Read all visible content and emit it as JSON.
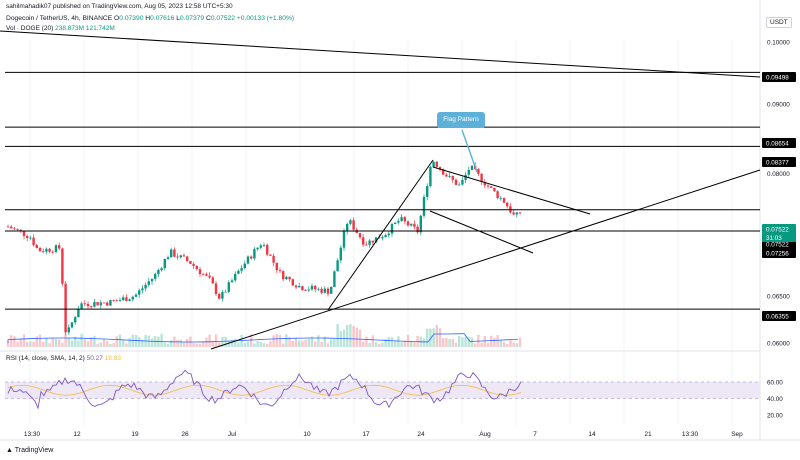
{
  "header": {
    "published_by": "sahilmahadik07 published on TradingView.com, Aug 05, 2023 12:58 UTC+5:30",
    "symbol": "Dogecoin / TetherUS, 4h, BINANCE",
    "open_label": "O",
    "open": "0.07390",
    "high_label": "H",
    "high": "0.07616",
    "low_label": "L",
    "low": "0.07379",
    "close_label": "C",
    "close": "0.07522",
    "change": "+0.00133 (+1.80%)",
    "volume_label": "Vol · DOGE (20)",
    "volume_1": "238.873M",
    "volume_2": "121.742M",
    "rsi_label": "RSI (14, close, SMA, 14, 2)",
    "rsi_1": "50.27",
    "rsi_2": "18.83"
  },
  "currency": "USDT",
  "brand": "TradingView",
  "annotation": "Flag Pattern",
  "countdown": "31:03",
  "colors": {
    "up": "#089981",
    "down": "#f23645",
    "line": "#000000",
    "rsi": "#7e57c2",
    "rsi_ma": "#f5b942",
    "rsi_band": "#ede7f6",
    "flag_box": "#5db1d9",
    "vol_ma": "#2962ff"
  },
  "chart_data": {
    "type": "candlestick",
    "price_ticks": [
      "0.10000",
      "0.09000",
      "0.08000",
      "0.07000",
      "0.06500",
      "0.06000"
    ],
    "price_levels": [
      "0.09498",
      "0.08654",
      "0.08377",
      "0.07522",
      "0.07522",
      "0.07256",
      "0.06355"
    ],
    "current_price": "0.07522",
    "x_ticks": [
      "13:30",
      "12",
      "19",
      "26",
      "Jul",
      "10",
      "17",
      "24",
      "Aug",
      "7",
      "14",
      "21",
      "13:30",
      "Sep"
    ],
    "rsi_ticks": [
      "60.00",
      "40.00",
      "20.00"
    ],
    "rsi_band": [
      40,
      60
    ]
  }
}
